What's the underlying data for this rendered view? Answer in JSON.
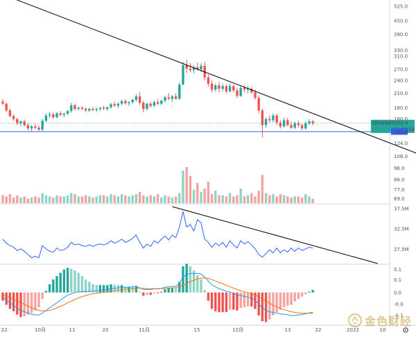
{
  "chart_data": {
    "type": "candlestick",
    "symbol": "LTCUSDT",
    "last_price": "153.4",
    "countdown": "13:48:13",
    "support_price": "140.0",
    "colors": {
      "up": "#26a69a",
      "down": "#ef5350",
      "volume_up": "#8fd3c7",
      "volume_down": "#f5a3a1",
      "trendline": "#000000",
      "support": "#2962ff",
      "price_tag": "#26a69a",
      "support_tag": "#2962ff",
      "rsi": "#2962ff",
      "macd": "#2196f3",
      "signal": "#ff6d00",
      "watermark": "#c49b3a"
    },
    "price_axis": {
      "ticks": [
        "525.0",
        "450.0",
        "390.0",
        "330.0",
        "310.0",
        "270.0",
        "240.0",
        "210.0",
        "180.0",
        "160.0",
        "140.0",
        "124.0",
        "108.0"
      ],
      "log": true,
      "range": [
        100,
        560
      ]
    },
    "volume_axis": {
      "ticks": [
        "96.0",
        "86.0",
        "77.0",
        "69.0"
      ],
      "range": [
        65,
        105
      ]
    },
    "rsi_axis": {
      "ticks": [
        "37.5M",
        "32.5M",
        "27.5M"
      ],
      "range": [
        24,
        38
      ]
    },
    "macd_axis": {
      "ticks": [
        "0.1",
        "0.1",
        "0.0",
        "-0.0",
        "-0.1"
      ],
      "range": [
        -0.125,
        0.105
      ]
    },
    "time_axis": {
      "labels": [
        "22",
        "10月",
        "11",
        "20",
        "11月",
        "15",
        "12月",
        "13",
        "22",
        "2022",
        "10"
      ]
    },
    "candles": [
      [
        192,
        197,
        185,
        188
      ],
      [
        188,
        190,
        172,
        175
      ],
      [
        175,
        178,
        163,
        165
      ],
      [
        165,
        168,
        157,
        160
      ],
      [
        160,
        162,
        150,
        153
      ],
      [
        153,
        158,
        148,
        156
      ],
      [
        156,
        159,
        148,
        150
      ],
      [
        150,
        153,
        142,
        145
      ],
      [
        145,
        150,
        140,
        148
      ],
      [
        148,
        152,
        144,
        146
      ],
      [
        146,
        150,
        141,
        143
      ],
      [
        143,
        160,
        141,
        157
      ],
      [
        157,
        170,
        155,
        166
      ],
      [
        166,
        172,
        162,
        168
      ],
      [
        168,
        171,
        160,
        163
      ],
      [
        163,
        172,
        161,
        170
      ],
      [
        170,
        174,
        165,
        167
      ],
      [
        167,
        171,
        163,
        169
      ],
      [
        169,
        176,
        167,
        174
      ],
      [
        174,
        190,
        171,
        185
      ],
      [
        185,
        188,
        175,
        178
      ],
      [
        178,
        182,
        174,
        180
      ],
      [
        180,
        183,
        176,
        178
      ],
      [
        178,
        181,
        172,
        175
      ],
      [
        175,
        180,
        172,
        178
      ],
      [
        178,
        181,
        174,
        176
      ],
      [
        176,
        180,
        172,
        178
      ],
      [
        178,
        182,
        174,
        180
      ],
      [
        180,
        184,
        176,
        178
      ],
      [
        178,
        182,
        174,
        181
      ],
      [
        181,
        190,
        178,
        187
      ],
      [
        187,
        192,
        182,
        184
      ],
      [
        184,
        190,
        180,
        188
      ],
      [
        188,
        196,
        185,
        193
      ],
      [
        193,
        197,
        186,
        189
      ],
      [
        189,
        193,
        184,
        191
      ],
      [
        191,
        198,
        188,
        196
      ],
      [
        196,
        208,
        192,
        203
      ],
      [
        203,
        212,
        186,
        190
      ],
      [
        190,
        194,
        172,
        178
      ],
      [
        178,
        190,
        175,
        188
      ],
      [
        188,
        192,
        180,
        184
      ],
      [
        184,
        194,
        182,
        191
      ],
      [
        191,
        197,
        186,
        188
      ],
      [
        188,
        196,
        185,
        194
      ],
      [
        194,
        205,
        190,
        201
      ],
      [
        201,
        210,
        195,
        198
      ],
      [
        198,
        206,
        192,
        203
      ],
      [
        203,
        210,
        196,
        198
      ],
      [
        198,
        235,
        196,
        230
      ],
      [
        230,
        292,
        228,
        282
      ],
      [
        282,
        298,
        260,
        272
      ],
      [
        272,
        288,
        262,
        268
      ],
      [
        268,
        282,
        258,
        276
      ],
      [
        276,
        290,
        266,
        270
      ],
      [
        270,
        288,
        262,
        280
      ],
      [
        280,
        292,
        240,
        248
      ],
      [
        248,
        256,
        225,
        232
      ],
      [
        232,
        240,
        212,
        218
      ],
      [
        218,
        232,
        214,
        228
      ],
      [
        228,
        236,
        212,
        220
      ],
      [
        220,
        232,
        214,
        226
      ],
      [
        226,
        230,
        210,
        214
      ],
      [
        214,
        232,
        212,
        226
      ],
      [
        226,
        230,
        212,
        216
      ],
      [
        216,
        222,
        200,
        204
      ],
      [
        204,
        226,
        202,
        222
      ],
      [
        222,
        228,
        212,
        218
      ],
      [
        218,
        226,
        210,
        220
      ],
      [
        220,
        224,
        208,
        212
      ],
      [
        212,
        218,
        196,
        200
      ],
      [
        200,
        205,
        170,
        175
      ],
      [
        175,
        178,
        132,
        150
      ],
      [
        150,
        162,
        146,
        160
      ],
      [
        160,
        166,
        154,
        158
      ],
      [
        158,
        170,
        155,
        166
      ],
      [
        166,
        169,
        150,
        154
      ],
      [
        154,
        158,
        145,
        148
      ],
      [
        148,
        162,
        146,
        158
      ],
      [
        158,
        162,
        148,
        150
      ],
      [
        150,
        156,
        144,
        146
      ],
      [
        146,
        156,
        144,
        153
      ],
      [
        153,
        157,
        146,
        150
      ],
      [
        150,
        152,
        142,
        145
      ],
      [
        145,
        156,
        143,
        153
      ],
      [
        153,
        160,
        150,
        156
      ],
      [
        156,
        158,
        150,
        153
      ]
    ],
    "volumes": [
      72,
      71,
      73,
      70,
      72,
      70,
      71,
      69,
      70,
      71,
      70,
      74,
      72,
      71,
      70,
      72,
      71,
      71,
      72,
      74,
      73,
      71,
      71,
      72,
      71,
      70,
      71,
      72,
      72,
      71,
      73,
      72,
      71,
      73,
      72,
      71,
      72,
      73,
      75,
      72,
      71,
      72,
      71,
      73,
      70,
      72,
      71,
      70,
      71,
      74,
      94,
      97,
      89,
      77,
      83,
      75,
      78,
      84,
      73,
      76,
      72,
      72,
      71,
      74,
      71,
      72,
      78,
      71,
      72,
      74,
      71,
      76,
      90,
      74,
      72,
      73,
      71,
      73,
      72,
      71,
      70,
      71,
      71,
      70,
      73,
      71,
      69
    ],
    "rsi": [
      30.0,
      29.0,
      28.4,
      28.0,
      27.2,
      27.6,
      27.0,
      26.2,
      25.4,
      25.8,
      25.4,
      28.4,
      27.6,
      27.0,
      26.8,
      27.8,
      27.2,
      27.4,
      28.0,
      29.2,
      28.6,
      28.8,
      28.4,
      28.2,
      28.6,
      28.2,
      28.6,
      28.8,
      28.6,
      28.9,
      29.6,
      29.0,
      29.4,
      30.0,
      29.2,
      29.6,
      30.2,
      31.0,
      29.2,
      27.8,
      28.8,
      28.2,
      29.6,
      29.0,
      30.0,
      30.8,
      29.8,
      31.0,
      30.4,
      33.0,
      36.8,
      33.0,
      33.6,
      32.0,
      34.8,
      34.0,
      30.0,
      29.2,
      28.0,
      29.0,
      28.4,
      29.2,
      28.0,
      29.6,
      28.6,
      27.8,
      29.6,
      28.8,
      29.4,
      28.6,
      27.6,
      26.2,
      25.6,
      26.4,
      27.4,
      26.6,
      27.8,
      26.6,
      27.4,
      26.8,
      27.8,
      27.0,
      27.8,
      27.2,
      27.6,
      28.0,
      27.8
    ],
    "macd": [
      -0.02,
      -0.03,
      -0.04,
      -0.05,
      -0.06,
      -0.07,
      -0.075,
      -0.08,
      -0.085,
      -0.087,
      -0.088,
      -0.08,
      -0.07,
      -0.06,
      -0.05,
      -0.04,
      -0.03,
      -0.02,
      -0.01,
      -0.005,
      0.0,
      0.003,
      0.004,
      0.004,
      0.005,
      0.005,
      0.006,
      0.008,
      0.01,
      0.012,
      0.015,
      0.016,
      0.018,
      0.02,
      0.02,
      0.021,
      0.022,
      0.024,
      0.018,
      0.012,
      0.012,
      0.012,
      0.014,
      0.014,
      0.016,
      0.02,
      0.022,
      0.024,
      0.024,
      0.035,
      0.06,
      0.07,
      0.074,
      0.075,
      0.074,
      0.072,
      0.06,
      0.045,
      0.03,
      0.022,
      0.015,
      0.01,
      0.004,
      0.002,
      -0.004,
      -0.01,
      -0.012,
      -0.015,
      -0.018,
      -0.022,
      -0.03,
      -0.045,
      -0.06,
      -0.07,
      -0.075,
      -0.078,
      -0.08,
      -0.083,
      -0.085,
      -0.087,
      -0.09,
      -0.089,
      -0.088,
      -0.086,
      -0.083,
      -0.08,
      -0.077
    ],
    "signal": [
      -0.01,
      -0.015,
      -0.02,
      -0.027,
      -0.033,
      -0.04,
      -0.046,
      -0.053,
      -0.06,
      -0.065,
      -0.07,
      -0.072,
      -0.072,
      -0.07,
      -0.066,
      -0.06,
      -0.054,
      -0.048,
      -0.04,
      -0.034,
      -0.027,
      -0.021,
      -0.016,
      -0.012,
      -0.008,
      -0.005,
      -0.003,
      -0.001,
      0.001,
      0.003,
      0.005,
      0.007,
      0.009,
      0.011,
      0.013,
      0.014,
      0.015,
      0.016,
      0.017,
      0.016,
      0.015,
      0.015,
      0.015,
      0.015,
      0.015,
      0.016,
      0.017,
      0.018,
      0.019,
      0.022,
      0.028,
      0.035,
      0.042,
      0.048,
      0.053,
      0.056,
      0.057,
      0.055,
      0.05,
      0.045,
      0.039,
      0.034,
      0.028,
      0.023,
      0.017,
      0.012,
      0.007,
      0.003,
      -0.001,
      -0.005,
      -0.01,
      -0.017,
      -0.025,
      -0.034,
      -0.042,
      -0.05,
      -0.056,
      -0.062,
      -0.067,
      -0.071,
      -0.075,
      -0.078,
      -0.08,
      -0.081,
      -0.081,
      -0.081,
      -0.08
    ],
    "trendlines": [
      {
        "pane": "price",
        "from": {
          "i": -3,
          "price": 620
        },
        "to": {
          "i": 117,
          "price": 108
        }
      },
      {
        "pane": "rsi",
        "from": {
          "i": 47,
          "value": 38.0
        },
        "to": {
          "i": 104,
          "value": 24.0
        }
      }
    ],
    "support_level": 140.0
  },
  "watermark": {
    "text": "金色财经"
  }
}
